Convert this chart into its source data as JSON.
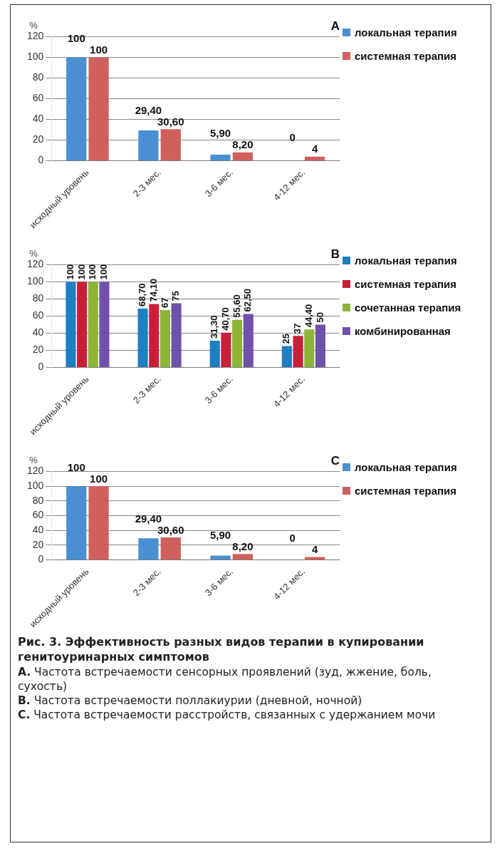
{
  "chart_data": [
    {
      "type": "bar",
      "title": "A",
      "ylabel": "%",
      "categories": [
        "исходный уровень",
        "2-3 мес.",
        "3-6 мес.",
        "4-12 мес."
      ],
      "series": [
        {
          "name": "локальная терапия",
          "color": "#4a8fd2",
          "values": [
            100,
            29.4,
            5.9,
            0
          ],
          "value_labels": [
            "100",
            "29,40",
            "5,90",
            "0"
          ]
        },
        {
          "name": "системная терапия",
          "color": "#d0605e",
          "values": [
            100,
            30.6,
            8.2,
            4
          ],
          "value_labels": [
            "100",
            "30,60",
            "8,20",
            "4"
          ]
        }
      ],
      "ylim": [
        0,
        120
      ],
      "yticks": [
        0,
        20,
        40,
        60,
        80,
        100,
        120
      ],
      "grid": "y",
      "legend": "top right"
    },
    {
      "type": "bar",
      "title": "B",
      "ylabel": "%",
      "categories": [
        "исходный уровень",
        "2-3 мес.",
        "3-6 мес.",
        "4-12 мес."
      ],
      "series": [
        {
          "name": "локальная терапия",
          "color": "#1f7fc4",
          "values": [
            100,
            68.7,
            31.3,
            25
          ],
          "value_labels": [
            "100",
            "68,70",
            "31,30",
            "25"
          ]
        },
        {
          "name": "системная терапия",
          "color": "#c8203c",
          "values": [
            100,
            74.1,
            40.7,
            37
          ],
          "value_labels": [
            "100",
            "74,10",
            "40,70",
            "37"
          ]
        },
        {
          "name": "сочетанная терапия",
          "color": "#8db33a",
          "values": [
            100,
            67,
            55.6,
            44.4
          ],
          "value_labels": [
            "100",
            "67",
            "55,60",
            "44,40"
          ]
        },
        {
          "name": "комбинированная",
          "color": "#7050a8",
          "values": [
            100,
            75,
            62.5,
            50
          ],
          "value_labels": [
            "100",
            "75",
            "62,50",
            "50"
          ]
        }
      ],
      "ylim": [
        0,
        120
      ],
      "yticks": [
        0,
        20,
        40,
        60,
        80,
        100,
        120
      ],
      "grid": "y",
      "legend": "top right"
    },
    {
      "type": "bar",
      "title": "C",
      "ylabel": "%",
      "categories": [
        "исходный уровень",
        "2-3 мес.",
        "3-6 мес.",
        "4-12 мес."
      ],
      "series": [
        {
          "name": "локальная терапия",
          "color": "#4a8fd2",
          "values": [
            100,
            29.4,
            5.9,
            0
          ],
          "value_labels": [
            "100",
            "29,40",
            "5,90",
            "0"
          ]
        },
        {
          "name": "системная терапия",
          "color": "#d0605e",
          "values": [
            100,
            30.6,
            8.2,
            4
          ],
          "value_labels": [
            "100",
            "30,60",
            "8,20",
            "4"
          ]
        }
      ],
      "ylim": [
        0,
        120
      ],
      "yticks": [
        0,
        20,
        40,
        60,
        80,
        100,
        120
      ],
      "grid": "y",
      "legend": "top right",
      "annotations": [
        "Рис. 3. Эффективность разных видов терапии в купировании генитоуринарных симптомов",
        "A. Частота встречаемости сенсорных проявлений (зуд, жжение, боль, сухость)",
        "B. Частота встречаемости поллакиурии (дневной, ночной)",
        "C. Частота встречаемости расстройств, связанных с удержанием мочи"
      ]
    }
  ]
}
